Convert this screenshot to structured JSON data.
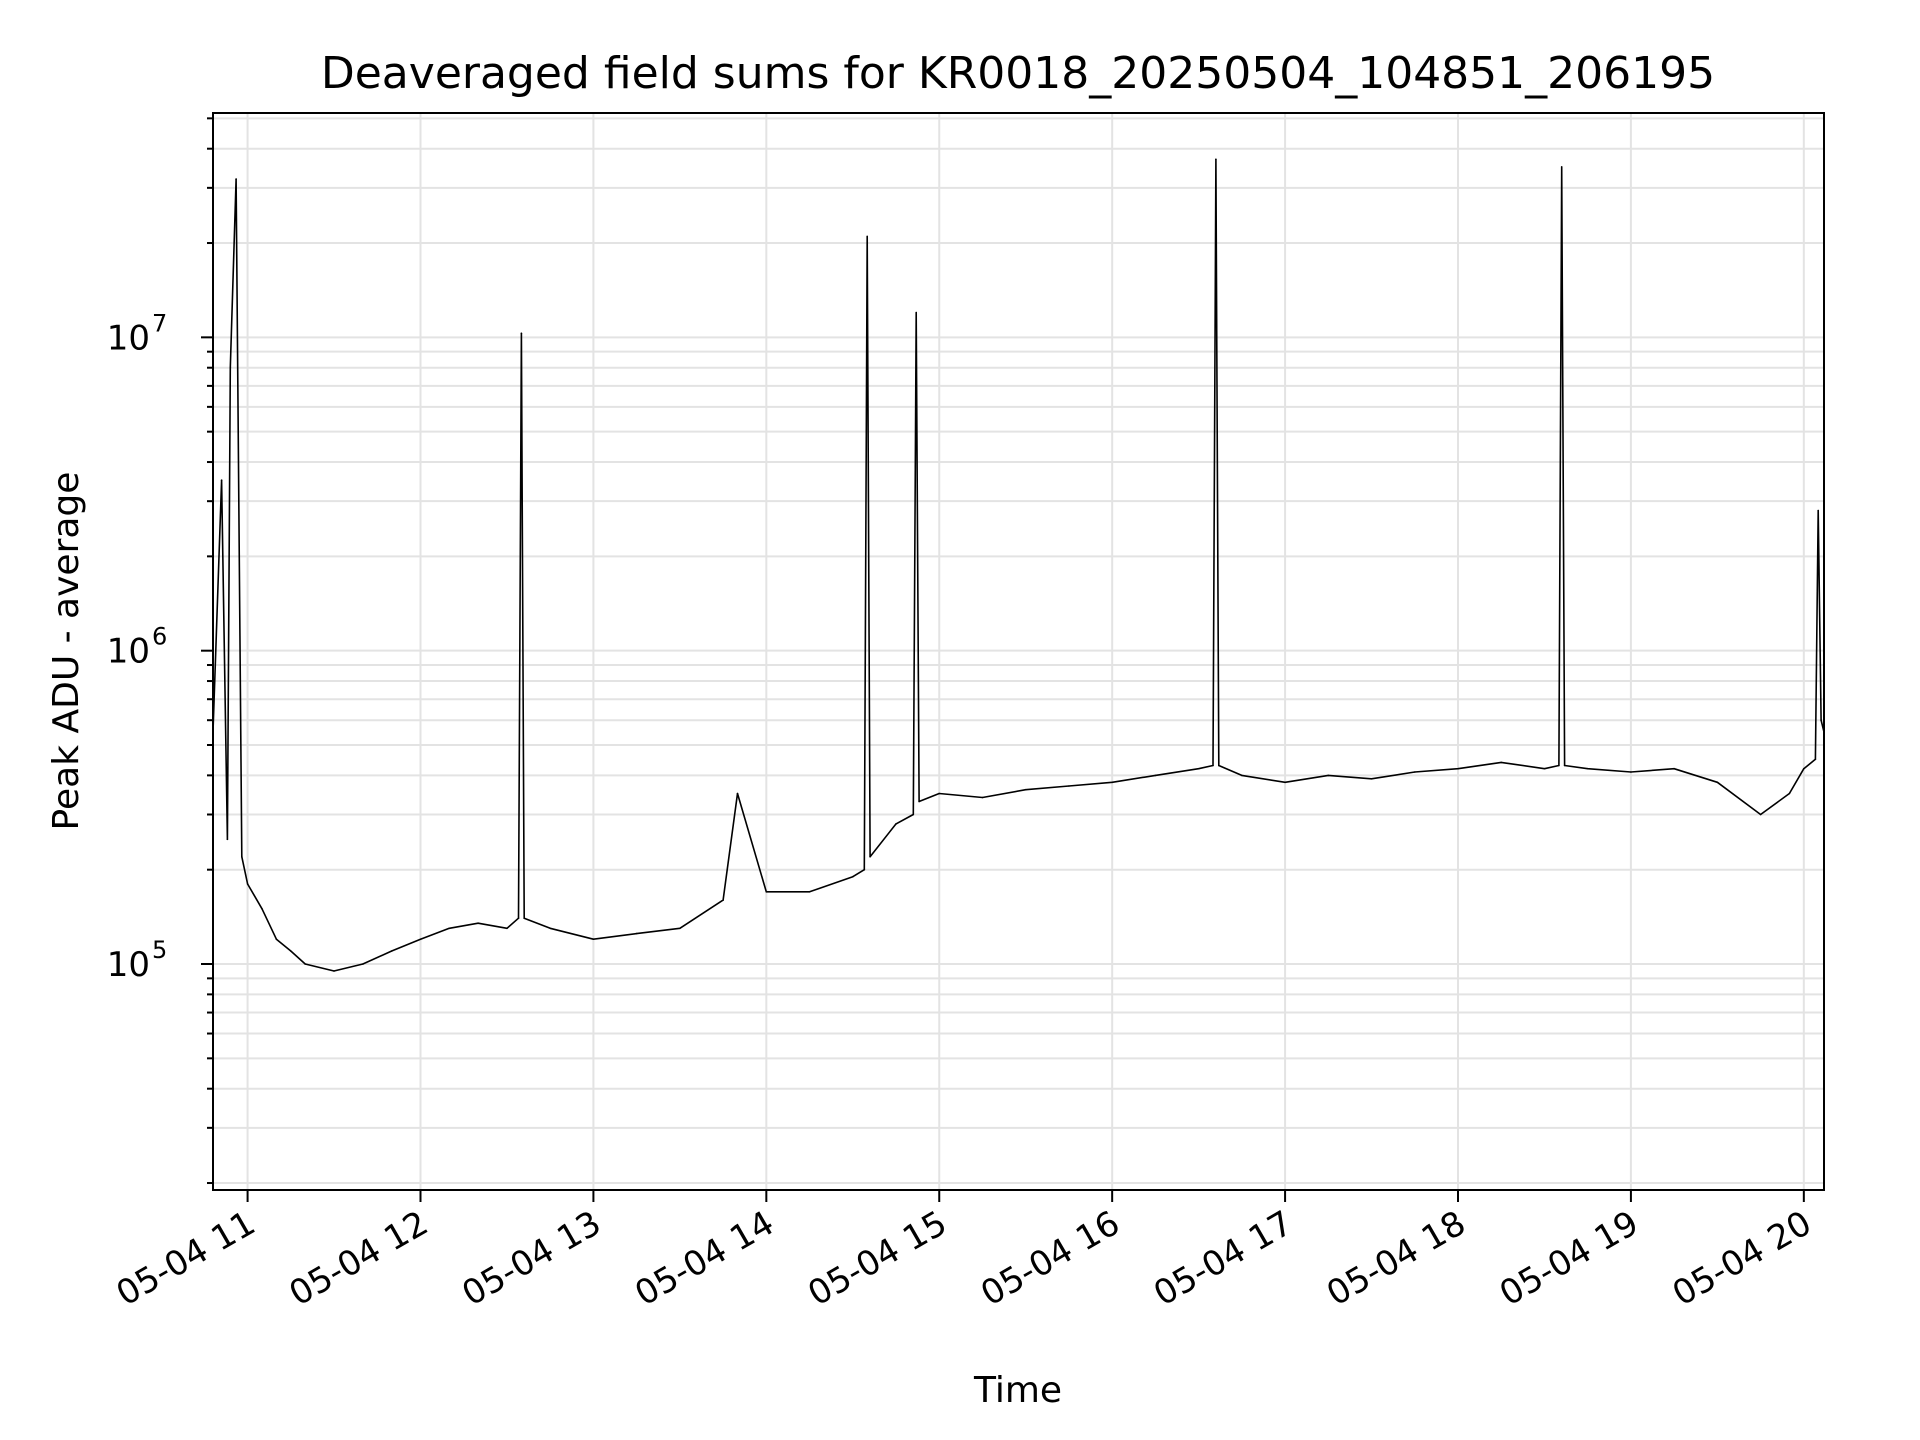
{
  "chart_data": {
    "type": "line",
    "title": "Deaveraged field sums for KR0018_20250504_104851_206195",
    "xlabel": "Time",
    "ylabel": "Peak ADU - average",
    "yscale": "log",
    "ylim": [
      19000,
      52000000
    ],
    "xlim": [
      "05-04 10:48",
      "05-04 20:07"
    ],
    "grid": true,
    "x_ticks": [
      "05-04 11",
      "05-04 12",
      "05-04 13",
      "05-04 14",
      "05-04 15",
      "05-04 16",
      "05-04 17",
      "05-04 18",
      "05-04 19",
      "05-04 20"
    ],
    "y_ticks": [
      {
        "base": "10",
        "exp": "5",
        "value": 100000
      },
      {
        "base": "10",
        "exp": "6",
        "value": 1000000
      },
      {
        "base": "10",
        "exp": "7",
        "value": 10000000
      }
    ],
    "line_color": "#000000",
    "series": [
      {
        "x": [
          "05-04 10:48",
          "05-04 10:51",
          "05-04 10:53",
          "05-04 10:54",
          "05-04 10:56",
          "05-04 10:58",
          "05-04 11:00",
          "05-04 11:05",
          "05-04 11:10",
          "05-04 11:15",
          "05-04 11:20",
          "05-04 11:30",
          "05-04 11:40",
          "05-04 11:50",
          "05-04 12:00",
          "05-04 12:10",
          "05-04 12:20",
          "05-04 12:30",
          "05-04 12:34",
          "05-04 12:35",
          "05-04 12:36",
          "05-04 12:45",
          "05-04 13:00",
          "05-04 13:15",
          "05-04 13:30",
          "05-04 13:45",
          "05-04 13:50",
          "05-04 14:00",
          "05-04 14:15",
          "05-04 14:30",
          "05-04 14:34",
          "05-04 14:35",
          "05-04 14:36",
          "05-04 14:45",
          "05-04 14:51",
          "05-04 14:52",
          "05-04 14:53",
          "05-04 15:00",
          "05-04 15:15",
          "05-04 15:30",
          "05-04 15:45",
          "05-04 16:00",
          "05-04 16:15",
          "05-04 16:30",
          "05-04 16:35",
          "05-04 16:36",
          "05-04 16:37",
          "05-04 16:45",
          "05-04 17:00",
          "05-04 17:15",
          "05-04 17:30",
          "05-04 17:45",
          "05-04 18:00",
          "05-04 18:15",
          "05-04 18:30",
          "05-04 18:35",
          "05-04 18:36",
          "05-04 18:37",
          "05-04 18:45",
          "05-04 19:00",
          "05-04 19:15",
          "05-04 19:30",
          "05-04 19:45",
          "05-04 19:55",
          "05-04 20:00",
          "05-04 20:04",
          "05-04 20:05",
          "05-04 20:06",
          "05-04 20:07"
        ],
        "y": [
          550000,
          3500000,
          250000,
          8000000,
          32000000,
          220000,
          180000,
          150000,
          120000,
          110000,
          100000,
          95000,
          100000,
          110000,
          120000,
          130000,
          135000,
          130000,
          140000,
          10300000,
          140000,
          130000,
          120000,
          125000,
          130000,
          160000,
          350000,
          170000,
          170000,
          190000,
          200000,
          21000000,
          220000,
          280000,
          300000,
          12000000,
          330000,
          350000,
          340000,
          360000,
          370000,
          380000,
          400000,
          420000,
          430000,
          37000000,
          430000,
          400000,
          380000,
          400000,
          390000,
          410000,
          420000,
          440000,
          420000,
          430000,
          35000000,
          430000,
          420000,
          410000,
          420000,
          380000,
          300000,
          350000,
          420000,
          450000,
          2800000,
          600000,
          550000
        ]
      }
    ]
  }
}
